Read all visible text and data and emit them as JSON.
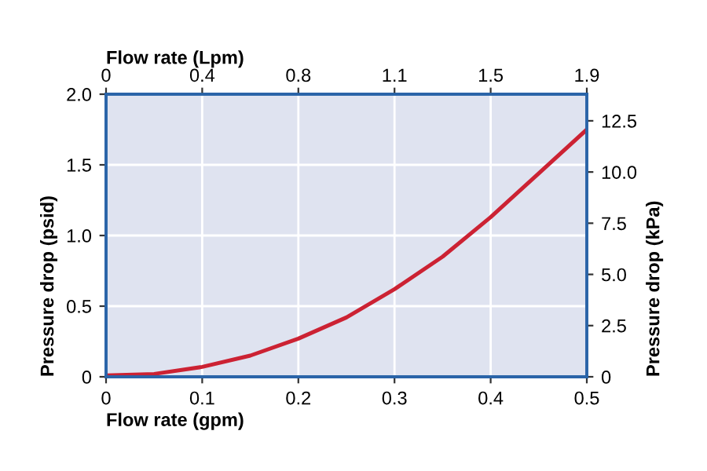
{
  "chart_data": {
    "type": "line",
    "xlabel": "Flow rate (gpm)",
    "x2label": "Flow rate (Lpm)",
    "ylabel": "Pressure drop (psid)",
    "y2label": "Pressure drop (kPa)",
    "x": [
      0,
      0.05,
      0.1,
      0.15,
      0.2,
      0.25,
      0.3,
      0.35,
      0.4,
      0.45,
      0.5
    ],
    "series": [
      {
        "color": "#cc2233",
        "values": [
          0.01,
          0.02,
          0.07,
          0.15,
          0.27,
          0.42,
          0.62,
          0.85,
          1.13,
          1.44,
          1.75
        ]
      }
    ],
    "xlim": [
      0,
      0.5
    ],
    "xticks": [
      0,
      0.1,
      0.2,
      0.3,
      0.4,
      0.5
    ],
    "x2lim": [
      0,
      1.9
    ],
    "x2ticks": [
      0,
      {
        "value": 0.38,
        "label": "0.4"
      },
      {
        "value": 0.76,
        "label": "0.8"
      },
      {
        "value": 1.14,
        "label": "1.1"
      },
      {
        "value": 1.52,
        "label": "1.5"
      },
      1.9
    ],
    "ylim": [
      0,
      2.0
    ],
    "yticks": [
      0,
      {
        "value": 0.5,
        "label": "0.5"
      },
      {
        "value": 1.0,
        "label": "1.0"
      },
      {
        "value": 1.5,
        "label": "1.5"
      },
      {
        "value": 2.0,
        "label": "2.0"
      }
    ],
    "y2lim": [
      0,
      13.8
    ],
    "y2ticks": [
      0,
      {
        "value": 2.5,
        "label": "2.5"
      },
      {
        "value": 5.0,
        "label": "5.0"
      },
      {
        "value": 7.5,
        "label": "7.5"
      },
      {
        "value": 10.0,
        "label": "10.0"
      },
      {
        "value": 12.5,
        "label": "12.5"
      }
    ],
    "grid": true,
    "line_style": "solid",
    "marker": "none"
  }
}
